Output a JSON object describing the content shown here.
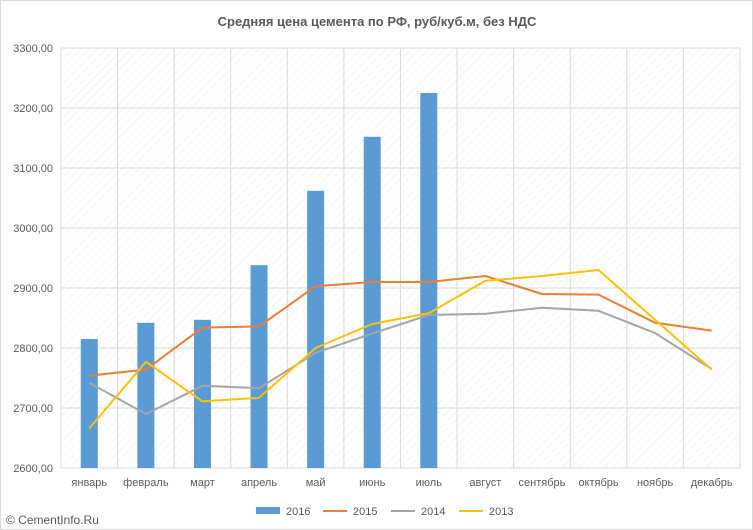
{
  "chart_data": {
    "type": "bar",
    "title": "Средняя цена цемента по РФ, руб/куб.м, без НДС",
    "categories": [
      "январь",
      "февраль",
      "март",
      "апрель",
      "май",
      "июнь",
      "июль",
      "август",
      "сентябрь",
      "октябрь",
      "ноябрь",
      "декабрь"
    ],
    "ylim": [
      2600,
      3300
    ],
    "yticks": [
      2600,
      2700,
      2800,
      2900,
      3000,
      3100,
      3200,
      3300
    ],
    "ytick_labels": [
      "2600,00",
      "2700,00",
      "2800,00",
      "2900,00",
      "3000,00",
      "3100,00",
      "3200,00",
      "3300,00"
    ],
    "grid": true,
    "legend_position": "bottom",
    "series": [
      {
        "name": "2016",
        "type": "bar",
        "color": "#5b9bd5",
        "values": [
          2815,
          2842,
          2847,
          2938,
          3062,
          3152,
          3225,
          null,
          null,
          null,
          null,
          null
        ]
      },
      {
        "name": "2015",
        "type": "line",
        "color": "#ed7d31",
        "values": [
          2754,
          2764,
          2834,
          2836,
          2903,
          2910,
          2910,
          2920,
          2890,
          2889,
          2842,
          2829
        ]
      },
      {
        "name": "2014",
        "type": "line",
        "color": "#a5a5a5",
        "values": [
          2742,
          2690,
          2737,
          2733,
          2792,
          2824,
          2855,
          2857,
          2867,
          2862,
          2825,
          2765
        ]
      },
      {
        "name": "2013",
        "type": "line",
        "color": "#ffc000",
        "values": [
          2666,
          2777,
          2711,
          2717,
          2800,
          2840,
          2858,
          2912,
          2920,
          2930,
          2847,
          2764
        ]
      }
    ]
  },
  "watermark": "© CementInfo.Ru"
}
